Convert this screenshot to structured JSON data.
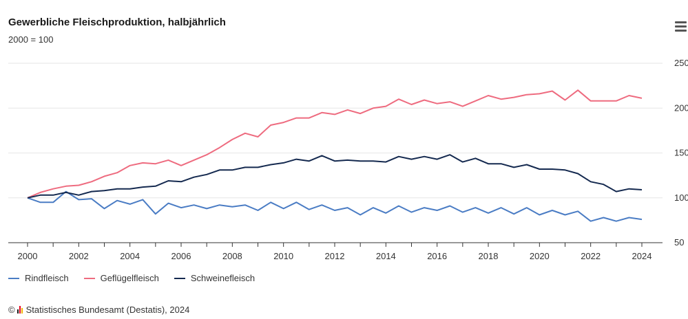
{
  "header": {
    "title": "Gewerbliche Fleischproduktion, halbjährlich",
    "subtitle": "2000 = 100"
  },
  "menu": {
    "icon": "hamburger-menu-icon"
  },
  "footer": {
    "copyright_symbol": "©",
    "credit": "Statistisches Bundesamt (Destatis), 2024",
    "logo_icon": "destatis-logo-icon"
  },
  "chart_data": {
    "type": "line",
    "title": "Gewerbliche Fleischproduktion, halbjährlich",
    "subtitle": "2000 = 100",
    "xlabel": "",
    "ylabel": "",
    "x": [
      2000.0,
      2000.5,
      2001.0,
      2001.5,
      2002.0,
      2002.5,
      2003.0,
      2003.5,
      2004.0,
      2004.5,
      2005.0,
      2005.5,
      2006.0,
      2006.5,
      2007.0,
      2007.5,
      2008.0,
      2008.5,
      2009.0,
      2009.5,
      2010.0,
      2010.5,
      2011.0,
      2011.5,
      2012.0,
      2012.5,
      2013.0,
      2013.5,
      2014.0,
      2014.5,
      2015.0,
      2015.5,
      2016.0,
      2016.5,
      2017.0,
      2017.5,
      2018.0,
      2018.5,
      2019.0,
      2019.5,
      2020.0,
      2020.5,
      2021.0,
      2021.5,
      2022.0,
      2022.5,
      2023.0,
      2023.5,
      2024.0
    ],
    "xlim": [
      1999.7,
      2024.6
    ],
    "xticks": [
      2000,
      2002,
      2004,
      2006,
      2008,
      2010,
      2012,
      2014,
      2016,
      2018,
      2020,
      2022,
      2024
    ],
    "ylim": [
      50,
      250
    ],
    "yticks": [
      50,
      100,
      150,
      200,
      250
    ],
    "grid": true,
    "legend_position": "bottom-left",
    "series": [
      {
        "name": "Rindfleisch",
        "color": "#4a7cc4",
        "values": [
          100,
          95,
          95,
          107,
          98,
          99,
          88,
          97,
          93,
          98,
          82,
          94,
          89,
          92,
          88,
          92,
          90,
          92,
          86,
          95,
          88,
          95,
          87,
          92,
          86,
          89,
          81,
          89,
          83,
          91,
          84,
          89,
          86,
          91,
          84,
          89,
          83,
          89,
          82,
          89,
          81,
          86,
          81,
          85,
          74,
          78,
          74,
          78,
          76
        ]
      },
      {
        "name": "Geflügelfleisch",
        "color": "#ee6b7f",
        "values": [
          100,
          106,
          110,
          113,
          114,
          118,
          124,
          128,
          136,
          139,
          138,
          142,
          136,
          142,
          148,
          156,
          165,
          172,
          168,
          181,
          184,
          189,
          189,
          195,
          193,
          198,
          194,
          200,
          202,
          210,
          204,
          209,
          205,
          207,
          202,
          208,
          214,
          210,
          212,
          215,
          216,
          219,
          209,
          220,
          208,
          208,
          208,
          214,
          211
        ]
      },
      {
        "name": "Schweinefleisch",
        "color": "#14294f",
        "values": [
          100,
          103,
          103,
          106,
          103,
          107,
          108,
          110,
          110,
          112,
          113,
          119,
          118,
          123,
          126,
          131,
          131,
          134,
          134,
          137,
          139,
          143,
          141,
          147,
          141,
          142,
          141,
          141,
          140,
          146,
          143,
          146,
          143,
          148,
          140,
          144,
          138,
          138,
          134,
          137,
          132,
          132,
          131,
          127,
          118,
          115,
          107,
          110,
          109
        ]
      }
    ]
  }
}
